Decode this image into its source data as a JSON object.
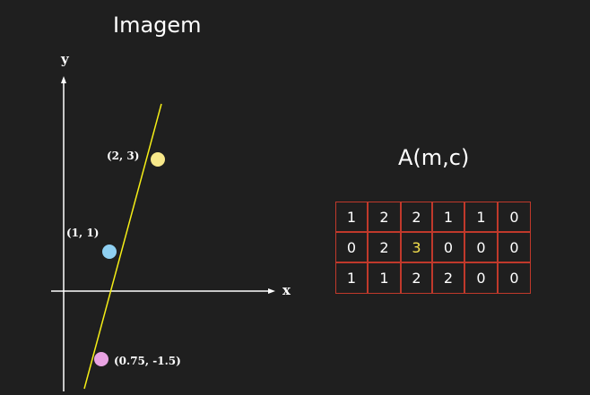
{
  "title": "Imagem",
  "accumulator_title": "A(m,c)",
  "axes": {
    "x_label": "x",
    "y_label": "y"
  },
  "points": [
    {
      "label": "(2, 3)",
      "color": "#f7e88a"
    },
    {
      "label": "(1, 1)",
      "color": "#8fd0f2"
    },
    {
      "label": "(0.75, -1.5)",
      "color": "#e9a3e3"
    }
  ],
  "line_color": "#f5ee16",
  "accumulator": {
    "rows": [
      [
        "1",
        "2",
        "2",
        "1",
        "1",
        "0"
      ],
      [
        "0",
        "2",
        "3",
        "0",
        "0",
        "0"
      ],
      [
        "1",
        "1",
        "2",
        "2",
        "0",
        "0"
      ]
    ],
    "highlight_value": "3",
    "highlight_color": "#f4e04d",
    "border_color": "#c0392b"
  }
}
